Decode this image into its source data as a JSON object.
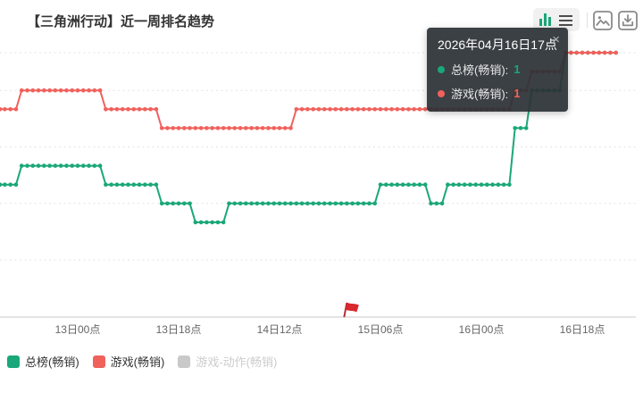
{
  "header": {
    "title": "【三角洲行动】近一周排名趋势"
  },
  "toolbox": {
    "chart_type_icon": "bar-chart-icon",
    "list_view_icon": "list-view-icon",
    "save_image_icon": "save-image-icon",
    "download_icon": "download-icon",
    "active_icon_color": "#1aa779",
    "inactive_icon_color": "#4d4d4d",
    "outline_icon_color": "#8a8a8a"
  },
  "tooltip": {
    "title": "2026年04月16日17点",
    "close_label": "×",
    "rows": [
      {
        "label": "总榜(畅销):",
        "value": "1",
        "color": "#1aa779"
      },
      {
        "label": "游戏(畅销):",
        "value": "1",
        "color": "#f0615c"
      }
    ]
  },
  "legend": [
    {
      "label": "总榜(畅销)",
      "color": "#1aa779",
      "active": true
    },
    {
      "label": "游戏(畅销)",
      "color": "#f0615c",
      "active": true
    },
    {
      "label": "游戏-动作(畅销)",
      "color": "#c9c9c9",
      "active": false
    }
  ],
  "chart_data": {
    "type": "line",
    "subtype": "step-rank-trend with hourly dot markers",
    "title": "【三角洲行动】近一周排名趋势",
    "xlabel": "",
    "ylabel": "rank (1 = best, axis inverted, labels cropped off-screen)",
    "x_axis": {
      "unit": "hour_index_from_chart_left_edge",
      "start_hour": 0,
      "end_hour": 110,
      "ticks": [
        {
          "label": "13日00点",
          "hour": 14
        },
        {
          "label": "13日18点",
          "hour": 32
        },
        {
          "label": "14日12点",
          "hour": 50
        },
        {
          "label": "15日06点",
          "hour": 68
        },
        {
          "label": "16日00点",
          "hour": 86
        },
        {
          "label": "16日18点",
          "hour": 104
        }
      ]
    },
    "y_axis": {
      "inverted": true,
      "min_rank": 1,
      "max_rank": 15,
      "gridline_ranks": [
        1,
        3,
        6,
        9,
        12
      ],
      "grid": "dotted"
    },
    "legend_position": "bottom-left",
    "series": [
      {
        "name": "总榜(畅销)",
        "color": "#1aa779",
        "visible": true,
        "segments_hour_from_to_rank": [
          [
            0,
            4,
            8
          ],
          [
            4,
            19,
            7
          ],
          [
            19,
            29,
            8
          ],
          [
            29,
            35,
            9
          ],
          [
            35,
            41,
            10
          ],
          [
            41,
            68,
            9
          ],
          [
            68,
            77,
            8
          ],
          [
            77,
            80,
            9
          ],
          [
            80,
            92,
            8
          ],
          [
            92,
            95,
            5
          ],
          [
            95,
            101,
            3
          ],
          [
            101,
            110,
            1
          ]
        ]
      },
      {
        "name": "游戏(畅销)",
        "color": "#f0615c",
        "visible": true,
        "segments_hour_from_to_rank": [
          [
            0,
            4,
            4
          ],
          [
            4,
            19,
            3
          ],
          [
            19,
            29,
            4
          ],
          [
            29,
            53,
            5
          ],
          [
            53,
            92,
            4
          ],
          [
            92,
            95,
            3
          ],
          [
            95,
            101,
            2
          ],
          [
            101,
            110,
            1
          ]
        ]
      },
      {
        "name": "游戏-动作(畅销)",
        "color": "#c9c9c9",
        "visible": false,
        "segments_hour_from_to_rank": []
      }
    ],
    "marker": {
      "symbol": "flag",
      "hour": 62,
      "color": "#d9282e"
    },
    "hovered_point": {
      "label": "2026年04月16日17点",
      "values": {
        "总榜(畅销)": 1,
        "游戏(畅销)": 1
      }
    }
  }
}
